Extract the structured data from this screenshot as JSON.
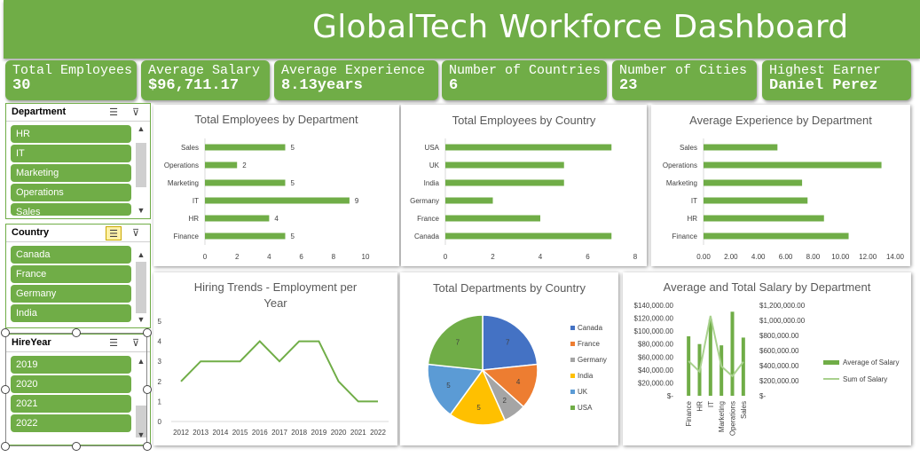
{
  "title": "GlobalTech Workforce Dashboard",
  "colors": {
    "accent": "#70ad47",
    "pie": [
      "#4472c4",
      "#ed7d31",
      "#a5a5a5",
      "#ffc000",
      "#5b9bd5",
      "#70ad47"
    ],
    "line_series": "#a9d18e"
  },
  "kpis": [
    {
      "label": "Total Employees",
      "value": "30"
    },
    {
      "label": "Average Salary",
      "value": "$96,711.17"
    },
    {
      "label": "Average Experience",
      "value": "8.13years"
    },
    {
      "label": "Number of Countries",
      "value": "6"
    },
    {
      "label": "Number of Cities",
      "value": "23"
    },
    {
      "label": "Highest Earner",
      "value": "Daniel Perez"
    }
  ],
  "slicers": {
    "department": {
      "title": "Department",
      "items": [
        "HR",
        "IT",
        "Marketing",
        "Operations",
        "Sales"
      ],
      "icons": [
        "multi-select-icon",
        "clear-filter-icon"
      ]
    },
    "country": {
      "title": "Country",
      "items": [
        "Canada",
        "France",
        "Germany",
        "India"
      ],
      "icons": [
        "multi-select-icon",
        "clear-filter-icon"
      ]
    },
    "hireyear": {
      "title": "HireYear",
      "items": [
        "2019",
        "2020",
        "2021",
        "2022"
      ],
      "icons": [
        "multi-select-icon",
        "clear-filter-icon"
      ]
    }
  },
  "chart_data": [
    {
      "id": "emp_by_dept",
      "type": "bar",
      "orientation": "horizontal",
      "title": "Total Employees by Department",
      "categories": [
        "Finance",
        "HR",
        "IT",
        "Marketing",
        "Operations",
        "Sales"
      ],
      "values": [
        5,
        4,
        9,
        5,
        2,
        5
      ],
      "data_labels": [
        "5",
        "4",
        "9",
        "5",
        "2",
        "5"
      ],
      "xlim": [
        0,
        10
      ],
      "ticks": [
        "0",
        "2",
        "4",
        "6",
        "8",
        "10"
      ],
      "grid": false
    },
    {
      "id": "emp_by_country",
      "type": "bar",
      "orientation": "horizontal",
      "title": "Total Employees by Country",
      "categories": [
        "Canada",
        "France",
        "Germany",
        "India",
        "UK",
        "USA"
      ],
      "values": [
        7,
        4,
        2,
        5,
        5,
        7
      ],
      "xlim": [
        0,
        8
      ],
      "ticks": [
        "0",
        "2",
        "4",
        "6",
        "8"
      ],
      "grid": false
    },
    {
      "id": "exp_by_dept",
      "type": "bar",
      "orientation": "horizontal",
      "title": "Average Experience by Department",
      "categories": [
        "Finance",
        "HR",
        "IT",
        "Marketing",
        "Operations",
        "Sales"
      ],
      "values": [
        10.6,
        8.8,
        7.6,
        7.2,
        13.0,
        5.4
      ],
      "xlim": [
        0,
        14
      ],
      "ticks": [
        "0.00",
        "2.00",
        "4.00",
        "6.00",
        "8.00",
        "10.00",
        "12.00",
        "14.00"
      ],
      "grid": false
    },
    {
      "id": "hiring_trends",
      "type": "line",
      "title": "Hiring Trends - Employment per Year",
      "x": [
        "2012",
        "2013",
        "2014",
        "2015",
        "2016",
        "2017",
        "2018",
        "2019",
        "2020",
        "2021",
        "2022"
      ],
      "values": [
        2,
        3,
        3,
        3,
        4,
        3,
        4,
        4,
        2,
        1,
        1
      ],
      "ylim": [
        0,
        5
      ],
      "yticks": [
        "0",
        "1",
        "2",
        "3",
        "4",
        "5"
      ],
      "grid": false
    },
    {
      "id": "depts_by_country",
      "type": "pie",
      "title": "Total Departments by Country",
      "categories": [
        "Canada",
        "France",
        "Germany",
        "India",
        "UK",
        "USA"
      ],
      "values": [
        7,
        4,
        2,
        5,
        5,
        7
      ],
      "data_labels": [
        "7",
        "4",
        "2",
        "5",
        "5",
        "7"
      ],
      "legend": "right"
    },
    {
      "id": "salary_by_dept",
      "type": "bar",
      "title": "Average  and Total Salary by Department",
      "categories": [
        "Finance",
        "HR",
        "IT",
        "Marketing",
        "Operations",
        "Sales"
      ],
      "series": [
        {
          "name": "Average of Salary",
          "type": "bar",
          "axis": "left",
          "values": [
            92000,
            80000,
            118000,
            78000,
            130000,
            90000
          ]
        },
        {
          "name": "Sum of Salary",
          "type": "line",
          "axis": "right",
          "values": [
            460000,
            320000,
            1060000,
            390000,
            260000,
            450000
          ]
        }
      ],
      "ylim_left": [
        0,
        140000
      ],
      "yticks_left": [
        "$-",
        "$20,000.00",
        "$40,000.00",
        "$60,000.00",
        "$80,000.00",
        "$100,000.00",
        "$120,000.00",
        "$140,000.00"
      ],
      "ylim_right": [
        0,
        1200000
      ],
      "yticks_right": [
        "$-",
        "$200,000.00",
        "$400,000.00",
        "$600,000.00",
        "$800,000.00",
        "$1,000,000.00",
        "$1,200,000.00"
      ],
      "legend": "right"
    }
  ]
}
